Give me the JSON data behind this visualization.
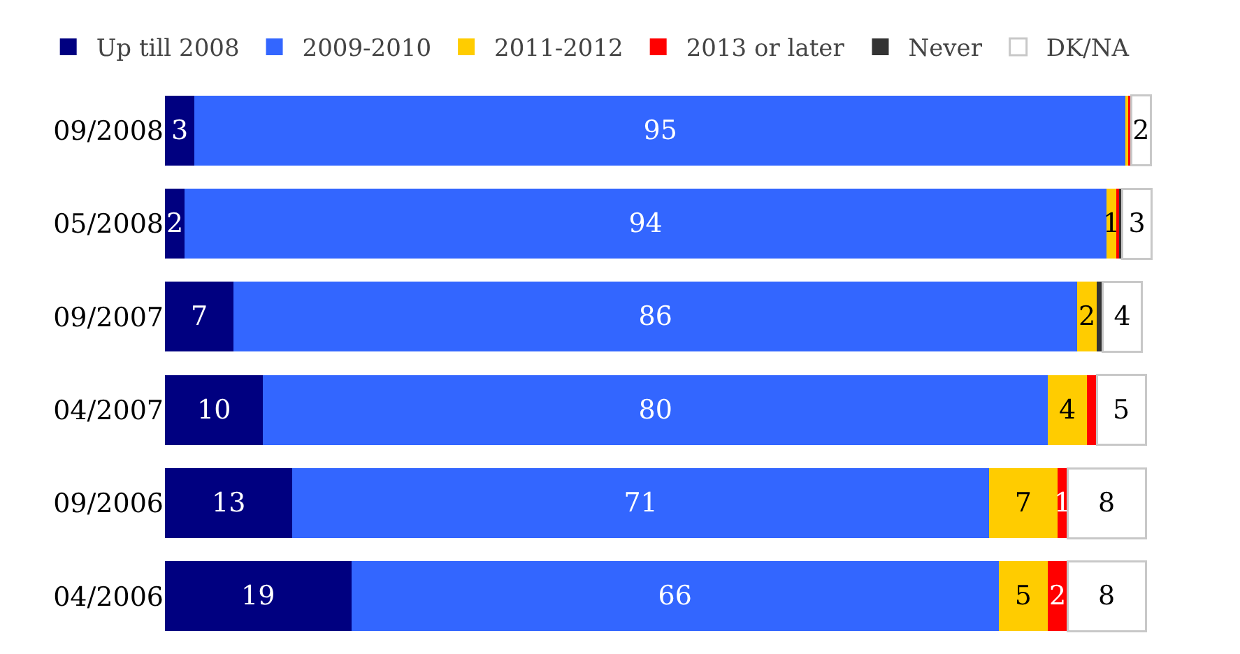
{
  "chart_data": {
    "type": "bar",
    "orientation": "horizontal",
    "stacked": true,
    "legend": "top",
    "categories": [
      "09/2008",
      "05/2008",
      "09/2007",
      "04/2007",
      "09/2006",
      "04/2006"
    ],
    "series": [
      {
        "name": "Up till 2008",
        "color": "#000080",
        "values": [
          3,
          2,
          7,
          10,
          13,
          19
        ],
        "value_labels": [
          "3",
          "2",
          "7",
          "10",
          "13",
          "19"
        ]
      },
      {
        "name": "2009-2010",
        "color": "#3366ff",
        "values": [
          95,
          94,
          86,
          80,
          71,
          66
        ],
        "value_labels": [
          "95",
          "94",
          "86",
          "80",
          "71",
          "66"
        ]
      },
      {
        "name": "2011-2012",
        "color": "#ffcc00",
        "values": [
          0.2,
          1,
          2,
          4,
          7,
          5
        ],
        "value_labels": [
          null,
          "1",
          "2",
          "4",
          "7",
          "5"
        ]
      },
      {
        "name": "2013 or later",
        "color": "#ff0000",
        "values": [
          0.3,
          0.3,
          null,
          1,
          1,
          2
        ],
        "value_labels": [
          null,
          null,
          null,
          null,
          "1",
          "2"
        ]
      },
      {
        "name": "Never",
        "color": "#333333",
        "values": [
          null,
          0.3,
          0.6,
          null,
          null,
          null
        ],
        "value_labels": [
          null,
          null,
          null,
          null,
          null,
          null
        ]
      },
      {
        "name": "DK/NA",
        "color": "#ffffff",
        "values": [
          2,
          3,
          4,
          5,
          8,
          8
        ],
        "value_labels": [
          "2",
          "3",
          "4",
          "5",
          "8",
          "8"
        ]
      }
    ]
  }
}
